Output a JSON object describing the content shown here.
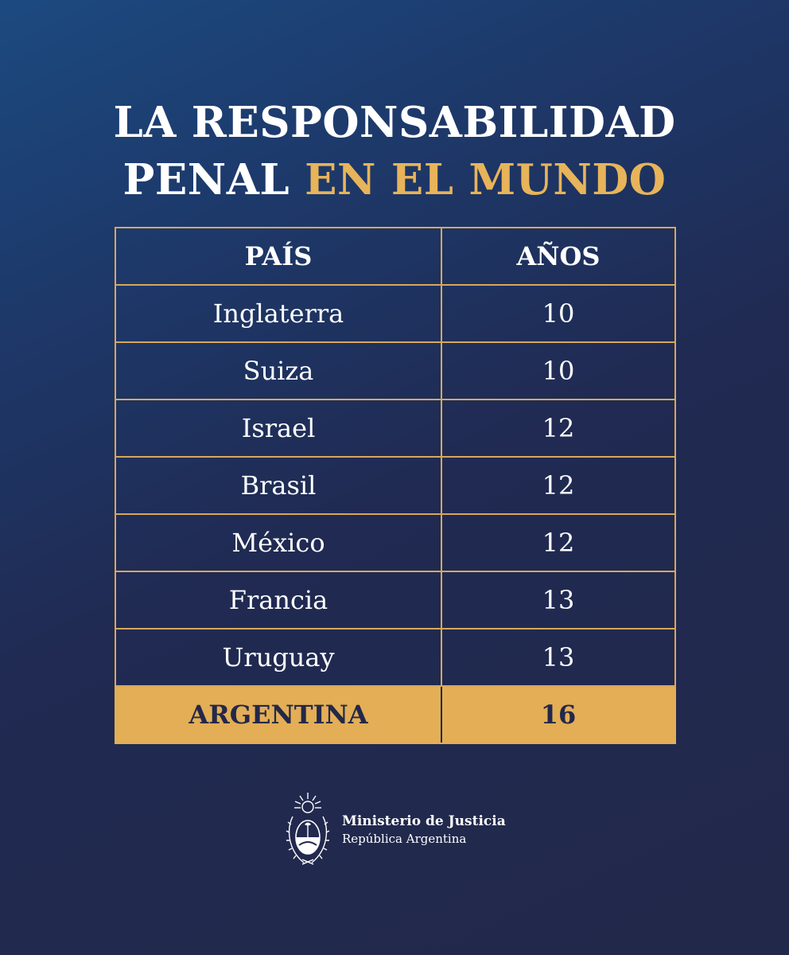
{
  "title": {
    "line1": "LA RESPONSABILIDAD",
    "line2_white": "PENAL ",
    "line2_accent": "EN EL MUNDO"
  },
  "table": {
    "headers": [
      "PAÍS",
      "AÑOS"
    ],
    "rows": [
      [
        "Inglaterra",
        "10"
      ],
      [
        "Suiza",
        "10"
      ],
      [
        "Israel",
        "12"
      ],
      [
        "Brasil",
        "12"
      ],
      [
        "México",
        "12"
      ],
      [
        "Francia",
        "13"
      ],
      [
        "Uruguay",
        "13"
      ]
    ],
    "highlight_row": [
      "ARGENTINA",
      "16"
    ]
  },
  "footer": {
    "ministry": "Ministerio de Justicia",
    "country": "República Argentina",
    "seal_icon": "argentina-coat-of-arms-icon"
  },
  "colors": {
    "background_top": "#1c4a80",
    "background_bottom": "#222849",
    "accent": "#e7b45a",
    "border": "#d9a75a",
    "text": "#ffffff",
    "highlight_text": "#23284a"
  }
}
